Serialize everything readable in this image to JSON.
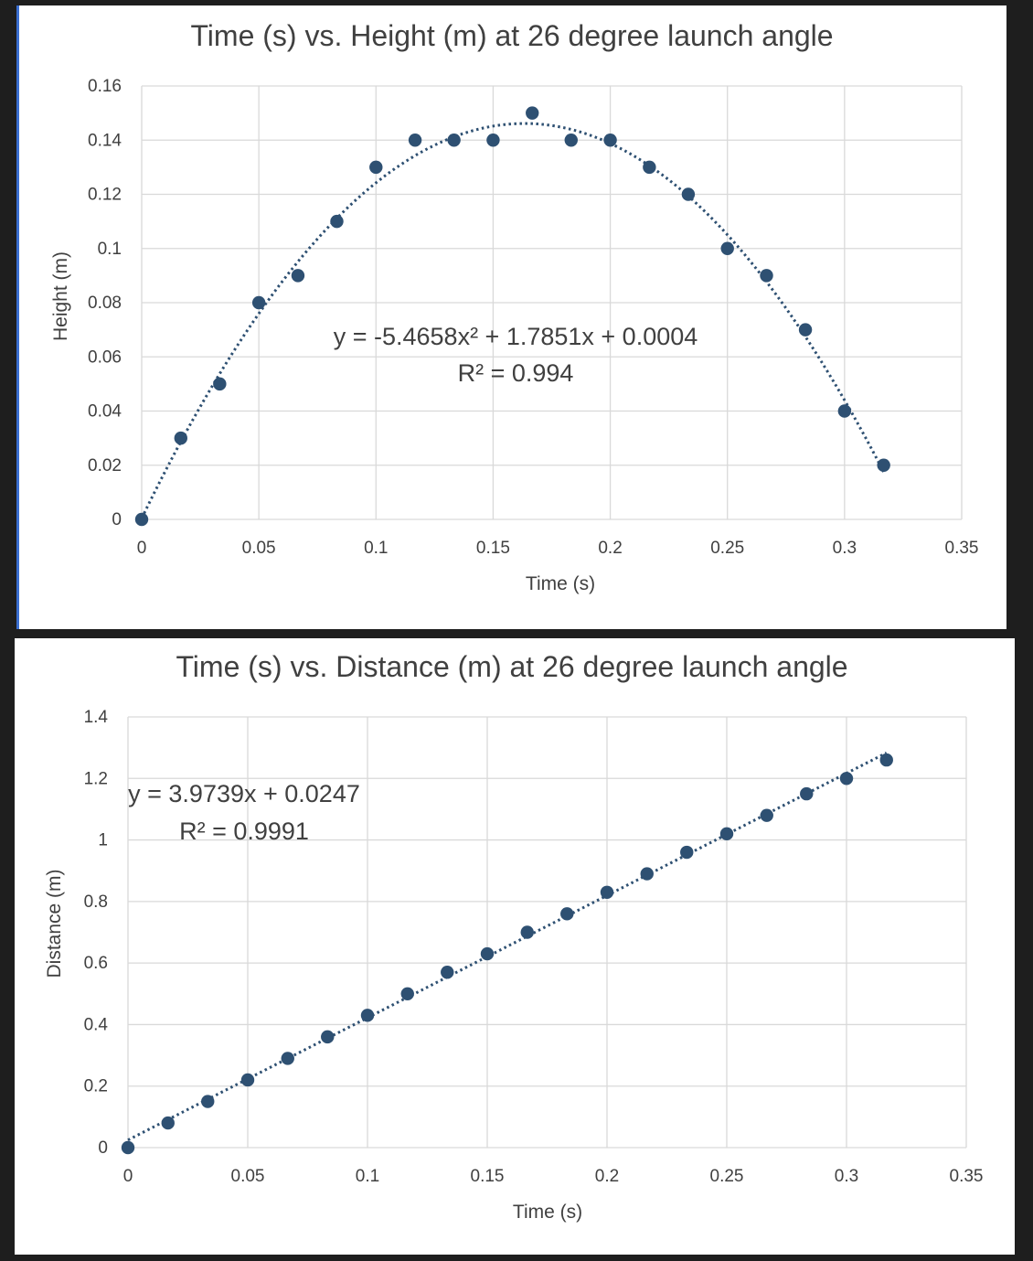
{
  "chart_data": [
    {
      "type": "scatter",
      "title": "Time (s) vs. Height (m) at 26 degree launch angle",
      "xlabel": "Time (s)",
      "ylabel": "Height (m)",
      "xlim": [
        0,
        0.35
      ],
      "ylim": [
        0,
        0.16
      ],
      "xticks": [
        "0",
        "0.05",
        "0.1",
        "0.15",
        "0.2",
        "0.25",
        "0.3",
        "0.35"
      ],
      "yticks": [
        "0",
        "0.02",
        "0.04",
        "0.06",
        "0.08",
        "0.1",
        "0.12",
        "0.14",
        "0.16"
      ],
      "grid": true,
      "series": [
        {
          "x": [
            0,
            0.0167,
            0.0333,
            0.05,
            0.0667,
            0.0833,
            0.1,
            0.1167,
            0.1333,
            0.15,
            0.1667,
            0.1833,
            0.2,
            0.2167,
            0.2333,
            0.25,
            0.2667,
            0.2833,
            0.3,
            0.3167
          ],
          "y": [
            0,
            0.03,
            0.05,
            0.08,
            0.09,
            0.11,
            0.13,
            0.14,
            0.14,
            0.14,
            0.15,
            0.14,
            0.14,
            0.13,
            0.12,
            0.1,
            0.09,
            0.07,
            0.04,
            0.02
          ]
        }
      ],
      "trendline": {
        "kind": "polynomial",
        "coefficients": [
          -5.4658,
          1.7851,
          0.0004
        ],
        "range": [
          0,
          0.3167
        ],
        "equation": "y = -5.4658x² + 1.7851x + 0.0004",
        "r_squared": "R² = 0.994"
      }
    },
    {
      "type": "scatter",
      "title": "Time (s) vs. Distance (m) at 26 degree launch angle",
      "xlabel": "Time (s)",
      "ylabel": "Distance (m)",
      "xlim": [
        0,
        0.35
      ],
      "ylim": [
        0,
        1.4
      ],
      "xticks": [
        "0",
        "0.05",
        "0.1",
        "0.15",
        "0.2",
        "0.25",
        "0.3",
        "0.35"
      ],
      "yticks": [
        "0",
        "0.2",
        "0.4",
        "0.6",
        "0.8",
        "1",
        "1.2",
        "1.4"
      ],
      "grid": true,
      "series": [
        {
          "x": [
            0,
            0.0167,
            0.0333,
            0.05,
            0.0667,
            0.0833,
            0.1,
            0.1167,
            0.1333,
            0.15,
            0.1667,
            0.1833,
            0.2,
            0.2167,
            0.2333,
            0.25,
            0.2667,
            0.2833,
            0.3,
            0.3167
          ],
          "y": [
            0,
            0.08,
            0.15,
            0.22,
            0.29,
            0.36,
            0.43,
            0.5,
            0.57,
            0.63,
            0.7,
            0.76,
            0.83,
            0.89,
            0.96,
            1.02,
            1.08,
            1.15,
            1.2,
            1.26
          ]
        }
      ],
      "trendline": {
        "kind": "linear",
        "coefficients": [
          3.9739,
          0.0247
        ],
        "range": [
          0,
          0.3167
        ],
        "equation": "y = 3.9739x + 0.0247",
        "r_squared": "R² = 0.9991"
      }
    }
  ],
  "colors": {
    "marker": "#2e5072",
    "trendline": "#2e5072",
    "grid": "#d9d9d9",
    "text": "#404040",
    "background": "#ffffff",
    "frame": "#1e1e1e",
    "accent_bar": "#3b6fd1"
  }
}
